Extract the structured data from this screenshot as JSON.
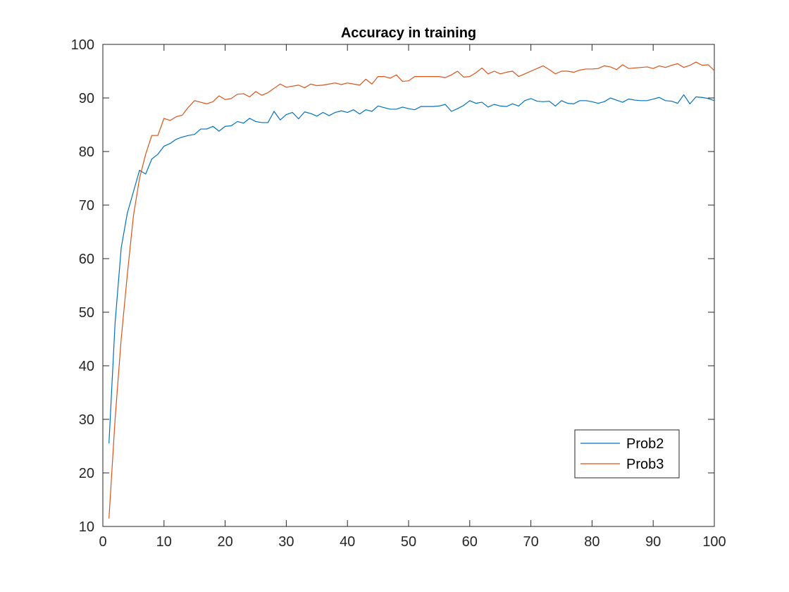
{
  "chart_data": {
    "type": "line",
    "title": "Accuracy in training",
    "xlabel": "",
    "ylabel": "",
    "xlim": [
      0,
      100
    ],
    "ylim": [
      10,
      100
    ],
    "xticks": [
      0,
      10,
      20,
      30,
      40,
      50,
      60,
      70,
      80,
      90,
      100
    ],
    "yticks": [
      10,
      20,
      30,
      40,
      50,
      60,
      70,
      80,
      90,
      100
    ],
    "grid": false,
    "legend": {
      "placement": "bottom-right"
    },
    "x": [
      1,
      2,
      3,
      4,
      5,
      6,
      7,
      8,
      9,
      10,
      11,
      12,
      13,
      14,
      15,
      16,
      17,
      18,
      19,
      20,
      21,
      22,
      23,
      24,
      25,
      26,
      27,
      28,
      29,
      30,
      31,
      32,
      33,
      34,
      35,
      36,
      37,
      38,
      39,
      40,
      41,
      42,
      43,
      44,
      45,
      46,
      47,
      48,
      49,
      50,
      51,
      52,
      53,
      54,
      55,
      56,
      57,
      58,
      59,
      60,
      61,
      62,
      63,
      64,
      65,
      66,
      67,
      68,
      69,
      70,
      71,
      72,
      73,
      74,
      75,
      76,
      77,
      78,
      79,
      80,
      81,
      82,
      83,
      84,
      85,
      86,
      87,
      88,
      89,
      90,
      91,
      92,
      93,
      94,
      95,
      96,
      97,
      98,
      99,
      100
    ],
    "series": [
      {
        "name": "Prob2",
        "color": "#0072BD",
        "values": [
          25.5,
          48.0,
          62.0,
          68.5,
          72.5,
          76.5,
          75.8,
          78.6,
          79.5,
          81.0,
          81.5,
          82.3,
          82.7,
          83.0,
          83.2,
          84.2,
          84.2,
          84.7,
          83.8,
          84.7,
          84.8,
          85.6,
          85.3,
          86.2,
          85.6,
          85.4,
          85.4,
          87.5,
          85.9,
          86.9,
          87.3,
          86.1,
          87.4,
          87.1,
          86.6,
          87.3,
          86.7,
          87.3,
          87.6,
          87.3,
          87.8,
          87.0,
          87.8,
          87.5,
          88.5,
          88.2,
          87.9,
          87.9,
          88.3,
          88.0,
          87.8,
          88.4,
          88.4,
          88.4,
          88.5,
          88.8,
          87.5,
          88.0,
          88.6,
          89.5,
          89.0,
          89.2,
          88.3,
          88.8,
          88.5,
          88.4,
          88.9,
          88.5,
          89.5,
          89.9,
          89.4,
          89.3,
          89.4,
          88.5,
          89.5,
          89.0,
          88.9,
          89.5,
          89.5,
          89.3,
          89.0,
          89.3,
          90.0,
          89.6,
          89.2,
          89.8,
          89.6,
          89.5,
          89.5,
          89.8,
          90.1,
          89.5,
          89.4,
          89.0,
          90.6,
          88.9,
          90.2,
          90.1,
          89.9,
          89.5
        ]
      },
      {
        "name": "Prob3",
        "color": "#D95319",
        "values": [
          11.5,
          30.0,
          45.0,
          57.0,
          68.0,
          75.0,
          79.5,
          83.0,
          83.0,
          86.2,
          85.8,
          86.5,
          86.8,
          88.3,
          89.5,
          89.2,
          88.9,
          89.3,
          90.4,
          89.7,
          89.9,
          90.7,
          90.8,
          90.2,
          91.2,
          90.5,
          91.0,
          91.8,
          92.6,
          92.0,
          92.2,
          92.4,
          91.9,
          92.6,
          92.3,
          92.4,
          92.6,
          92.8,
          92.5,
          92.8,
          92.6,
          92.4,
          93.5,
          92.6,
          94.0,
          94.0,
          93.7,
          94.3,
          93.1,
          93.2,
          94.0,
          94.0,
          94.0,
          94.0,
          94.0,
          93.8,
          94.3,
          95.0,
          93.9,
          94.0,
          94.7,
          95.6,
          94.5,
          95.0,
          94.5,
          94.8,
          95.0,
          94.0,
          94.5,
          95.0,
          95.5,
          96.0,
          95.3,
          94.5,
          95.0,
          95.0,
          94.8,
          95.2,
          95.4,
          95.4,
          95.5,
          96.0,
          95.8,
          95.3,
          96.2,
          95.5,
          95.6,
          95.7,
          95.8,
          95.5,
          96.0,
          95.7,
          96.1,
          96.4,
          95.7,
          96.1,
          96.7,
          96.1,
          96.2,
          95.1
        ]
      }
    ]
  }
}
